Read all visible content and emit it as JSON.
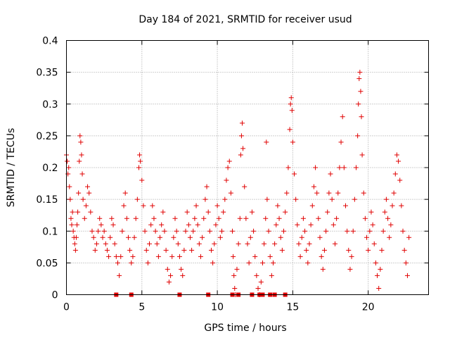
{
  "chart_data": {
    "type": "scatter",
    "title": "Day 184 of 2021, SRMTID for receiver usud",
    "xlabel": "GPS time / hours",
    "ylabel": "SRMTID / TECUs",
    "xlim": [
      0,
      24
    ],
    "ylim": [
      0,
      0.4
    ],
    "xticks": [
      "0",
      "5",
      "10",
      "15",
      "20"
    ],
    "yticks": [
      "0",
      "0.05",
      "0.1",
      "0.15",
      "0.2",
      "0.25",
      "0.3",
      "0.35",
      "0.4"
    ],
    "grid": true,
    "series": [
      {
        "name": "SRMTID",
        "color": "#e00000",
        "marker": "+",
        "points": [
          [
            0.0,
            0.22
          ],
          [
            0.05,
            0.21
          ],
          [
            0.1,
            0.19
          ],
          [
            0.15,
            0.2
          ],
          [
            0.2,
            0.17
          ],
          [
            0.25,
            0.15
          ],
          [
            0.3,
            0.12
          ],
          [
            0.35,
            0.11
          ],
          [
            0.4,
            0.13
          ],
          [
            0.45,
            0.1
          ],
          [
            0.5,
            0.09
          ],
          [
            0.55,
            0.08
          ],
          [
            0.6,
            0.07
          ],
          [
            0.65,
            0.09
          ],
          [
            0.7,
            0.11
          ],
          [
            0.75,
            0.13
          ],
          [
            0.8,
            0.16
          ],
          [
            0.85,
            0.21
          ],
          [
            0.9,
            0.25
          ],
          [
            0.95,
            0.24
          ],
          [
            1.0,
            0.22
          ],
          [
            1.05,
            0.19
          ],
          [
            1.1,
            0.15
          ],
          [
            1.2,
            0.12
          ],
          [
            1.3,
            0.14
          ],
          [
            1.4,
            0.17
          ],
          [
            1.5,
            0.16
          ],
          [
            1.6,
            0.13
          ],
          [
            1.7,
            0.1
          ],
          [
            1.8,
            0.09
          ],
          [
            1.9,
            0.07
          ],
          [
            2.0,
            0.08
          ],
          [
            2.1,
            0.1
          ],
          [
            2.2,
            0.12
          ],
          [
            2.3,
            0.11
          ],
          [
            2.4,
            0.09
          ],
          [
            2.5,
            0.1
          ],
          [
            2.6,
            0.08
          ],
          [
            2.7,
            0.07
          ],
          [
            2.8,
            0.06
          ],
          [
            2.9,
            0.09
          ],
          [
            3.0,
            0.12
          ],
          [
            3.1,
            0.11
          ],
          [
            3.2,
            0.08
          ],
          [
            3.3,
            0.06
          ],
          [
            3.4,
            0.05
          ],
          [
            3.5,
            0.03
          ],
          [
            3.6,
            0.06
          ],
          [
            3.7,
            0.1
          ],
          [
            3.8,
            0.14
          ],
          [
            3.9,
            0.16
          ],
          [
            4.0,
            0.12
          ],
          [
            4.1,
            0.09
          ],
          [
            4.2,
            0.07
          ],
          [
            4.3,
            0.05
          ],
          [
            4.4,
            0.06
          ],
          [
            4.5,
            0.09
          ],
          [
            4.6,
            0.12
          ],
          [
            4.7,
            0.15
          ],
          [
            4.8,
            0.2
          ],
          [
            4.85,
            0.22
          ],
          [
            4.9,
            0.21
          ],
          [
            5.0,
            0.18
          ],
          [
            5.1,
            0.14
          ],
          [
            5.2,
            0.1
          ],
          [
            5.3,
            0.07
          ],
          [
            5.4,
            0.05
          ],
          [
            5.5,
            0.08
          ],
          [
            5.6,
            0.11
          ],
          [
            5.7,
            0.14
          ],
          [
            5.8,
            0.12
          ],
          [
            5.9,
            0.1
          ],
          [
            6.0,
            0.08
          ],
          [
            6.1,
            0.06
          ],
          [
            6.2,
            0.09
          ],
          [
            6.3,
            0.11
          ],
          [
            6.4,
            0.13
          ],
          [
            6.5,
            0.1
          ],
          [
            6.6,
            0.07
          ],
          [
            6.7,
            0.04
          ],
          [
            6.8,
            0.02
          ],
          [
            6.9,
            0.03
          ],
          [
            7.0,
            0.06
          ],
          [
            7.1,
            0.09
          ],
          [
            7.2,
            0.12
          ],
          [
            7.3,
            0.1
          ],
          [
            7.4,
            0.08
          ],
          [
            7.5,
            0.06
          ],
          [
            7.6,
            0.04
          ],
          [
            7.7,
            0.03
          ],
          [
            7.8,
            0.07
          ],
          [
            7.9,
            0.1
          ],
          [
            8.0,
            0.13
          ],
          [
            8.1,
            0.11
          ],
          [
            8.2,
            0.09
          ],
          [
            8.3,
            0.07
          ],
          [
            8.4,
            0.1
          ],
          [
            8.5,
            0.12
          ],
          [
            8.6,
            0.14
          ],
          [
            8.7,
            0.11
          ],
          [
            8.8,
            0.08
          ],
          [
            8.9,
            0.06
          ],
          [
            9.0,
            0.09
          ],
          [
            9.1,
            0.12
          ],
          [
            9.2,
            0.15
          ],
          [
            9.3,
            0.17
          ],
          [
            9.4,
            0.13
          ],
          [
            9.5,
            0.1
          ],
          [
            9.6,
            0.07
          ],
          [
            9.7,
            0.05
          ],
          [
            9.8,
            0.08
          ],
          [
            9.9,
            0.11
          ],
          [
            10.0,
            0.14
          ],
          [
            10.1,
            0.12
          ],
          [
            10.2,
            0.09
          ],
          [
            10.3,
            0.1
          ],
          [
            10.4,
            0.13
          ],
          [
            10.5,
            0.15
          ],
          [
            10.6,
            0.18
          ],
          [
            10.7,
            0.2
          ],
          [
            10.8,
            0.21
          ],
          [
            10.9,
            0.16
          ],
          [
            11.0,
            0.1
          ],
          [
            11.05,
            0.06
          ],
          [
            11.1,
            0.03
          ],
          [
            11.15,
            0.01
          ],
          [
            11.2,
            0.0
          ],
          [
            11.3,
            0.04
          ],
          [
            11.4,
            0.08
          ],
          [
            11.5,
            0.12
          ],
          [
            11.55,
            0.22
          ],
          [
            11.6,
            0.25
          ],
          [
            11.65,
            0.27
          ],
          [
            11.7,
            0.23
          ],
          [
            11.8,
            0.17
          ],
          [
            11.9,
            0.12
          ],
          [
            12.0,
            0.08
          ],
          [
            12.1,
            0.05
          ],
          [
            12.2,
            0.09
          ],
          [
            12.3,
            0.13
          ],
          [
            12.4,
            0.1
          ],
          [
            12.5,
            0.06
          ],
          [
            12.6,
            0.03
          ],
          [
            12.7,
            0.01
          ],
          [
            12.8,
            0.0
          ],
          [
            12.9,
            0.02
          ],
          [
            13.0,
            0.05
          ],
          [
            13.1,
            0.08
          ],
          [
            13.2,
            0.12
          ],
          [
            13.25,
            0.24
          ],
          [
            13.3,
            0.15
          ],
          [
            13.4,
            0.1
          ],
          [
            13.5,
            0.06
          ],
          [
            13.6,
            0.03
          ],
          [
            13.7,
            0.05
          ],
          [
            13.8,
            0.08
          ],
          [
            13.9,
            0.11
          ],
          [
            14.0,
            0.14
          ],
          [
            14.1,
            0.12
          ],
          [
            14.2,
            0.09
          ],
          [
            14.3,
            0.07
          ],
          [
            14.4,
            0.1
          ],
          [
            14.5,
            0.13
          ],
          [
            14.6,
            0.16
          ],
          [
            14.7,
            0.2
          ],
          [
            14.8,
            0.26
          ],
          [
            14.85,
            0.3
          ],
          [
            14.9,
            0.31
          ],
          [
            14.95,
            0.29
          ],
          [
            15.0,
            0.24
          ],
          [
            15.1,
            0.19
          ],
          [
            15.2,
            0.15
          ],
          [
            15.3,
            0.11
          ],
          [
            15.4,
            0.08
          ],
          [
            15.5,
            0.06
          ],
          [
            15.6,
            0.09
          ],
          [
            15.7,
            0.12
          ],
          [
            15.8,
            0.1
          ],
          [
            15.9,
            0.07
          ],
          [
            16.0,
            0.05
          ],
          [
            16.1,
            0.08
          ],
          [
            16.2,
            0.11
          ],
          [
            16.3,
            0.14
          ],
          [
            16.4,
            0.17
          ],
          [
            16.5,
            0.2
          ],
          [
            16.6,
            0.16
          ],
          [
            16.7,
            0.12
          ],
          [
            16.8,
            0.09
          ],
          [
            16.9,
            0.06
          ],
          [
            17.0,
            0.04
          ],
          [
            17.1,
            0.07
          ],
          [
            17.2,
            0.1
          ],
          [
            17.3,
            0.13
          ],
          [
            17.4,
            0.16
          ],
          [
            17.5,
            0.19
          ],
          [
            17.6,
            0.15
          ],
          [
            17.7,
            0.11
          ],
          [
            17.8,
            0.08
          ],
          [
            17.9,
            0.12
          ],
          [
            18.0,
            0.16
          ],
          [
            18.1,
            0.2
          ],
          [
            18.2,
            0.24
          ],
          [
            18.3,
            0.28
          ],
          [
            18.4,
            0.2
          ],
          [
            18.5,
            0.14
          ],
          [
            18.6,
            0.1
          ],
          [
            18.7,
            0.07
          ],
          [
            18.8,
            0.04
          ],
          [
            18.9,
            0.06
          ],
          [
            19.0,
            0.1
          ],
          [
            19.1,
            0.15
          ],
          [
            19.2,
            0.2
          ],
          [
            19.3,
            0.25
          ],
          [
            19.35,
            0.3
          ],
          [
            19.4,
            0.34
          ],
          [
            19.45,
            0.35
          ],
          [
            19.5,
            0.32
          ],
          [
            19.55,
            0.28
          ],
          [
            19.6,
            0.22
          ],
          [
            19.7,
            0.16
          ],
          [
            19.8,
            0.12
          ],
          [
            19.9,
            0.09
          ],
          [
            20.0,
            0.07
          ],
          [
            20.1,
            0.1
          ],
          [
            20.2,
            0.13
          ],
          [
            20.3,
            0.11
          ],
          [
            20.4,
            0.08
          ],
          [
            20.5,
            0.05
          ],
          [
            20.6,
            0.03
          ],
          [
            20.7,
            0.01
          ],
          [
            20.8,
            0.04
          ],
          [
            20.9,
            0.07
          ],
          [
            21.0,
            0.1
          ],
          [
            21.1,
            0.13
          ],
          [
            21.2,
            0.15
          ],
          [
            21.3,
            0.12
          ],
          [
            21.4,
            0.09
          ],
          [
            21.5,
            0.11
          ],
          [
            21.6,
            0.14
          ],
          [
            21.7,
            0.16
          ],
          [
            21.8,
            0.19
          ],
          [
            21.9,
            0.22
          ],
          [
            22.0,
            0.21
          ],
          [
            22.1,
            0.18
          ],
          [
            22.2,
            0.14
          ],
          [
            22.3,
            0.1
          ],
          [
            22.4,
            0.07
          ],
          [
            22.5,
            0.05
          ],
          [
            22.6,
            0.03
          ],
          [
            22.7,
            0.09
          ]
        ]
      }
    ],
    "bad_data_markers": [
      3.3,
      4.3,
      7.5,
      9.4,
      11.0,
      11.4,
      12.3,
      12.8,
      13.0,
      13.5,
      13.8,
      14.5
    ]
  }
}
